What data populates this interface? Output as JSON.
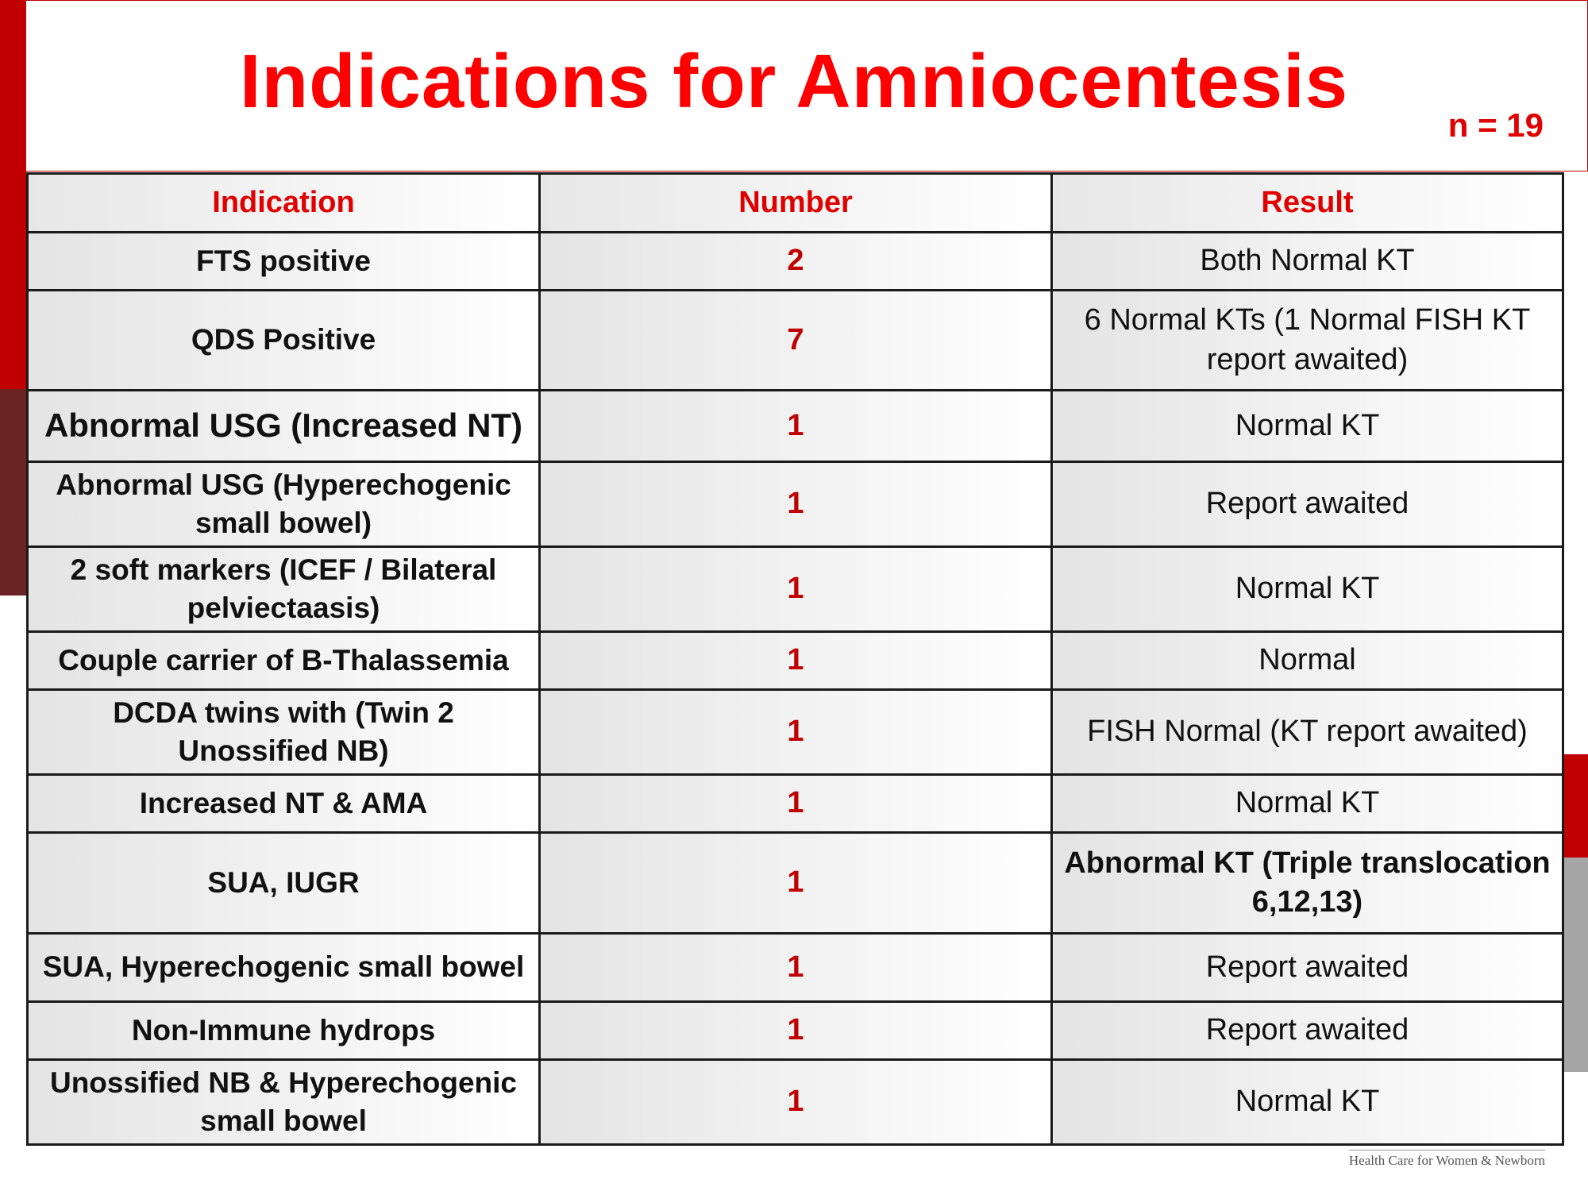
{
  "title": "Indications for Amniocentesis",
  "n_label": "n = 19",
  "columns": {
    "indication": "Indication",
    "number": "Number",
    "result": "Result"
  },
  "rows": [
    {
      "indication": "FTS positive",
      "number": "2",
      "result": "Both Normal KT"
    },
    {
      "indication": "QDS Positive",
      "number": "7",
      "result": "6 Normal KTs (1 Normal FISH KT report awaited)"
    },
    {
      "indication": "Abnormal USG (Increased NT)",
      "number": "1",
      "result": "Normal KT"
    },
    {
      "indication": "Abnormal USG (Hyperechogenic small bowel)",
      "number": "1",
      "result": "Report awaited"
    },
    {
      "indication": "2 soft markers (ICEF / Bilateral pelviectaasis)",
      "number": "1",
      "result": "Normal KT"
    },
    {
      "indication": "Couple carrier of B-Thalassemia",
      "number": "1",
      "result": "Normal"
    },
    {
      "indication": "DCDA twins with (Twin 2 Unossified NB)",
      "number": "1",
      "result": "FISH Normal (KT report awaited)"
    },
    {
      "indication": "Increased NT & AMA",
      "number": "1",
      "result": "Normal KT"
    },
    {
      "indication": "SUA, IUGR",
      "number": "1",
      "result": "Abnormal KT (Triple translocation 6,12,13)"
    },
    {
      "indication": "SUA, Hyperechogenic small bowel",
      "number": "1",
      "result": "Report awaited"
    },
    {
      "indication": "Non-Immune hydrops",
      "number": "1",
      "result": "Report awaited"
    },
    {
      "indication": "Unossified NB & Hyperechogenic small bowel",
      "number": "1",
      "result": "Normal KT"
    }
  ],
  "footer": "Health Care for Women & Newborn",
  "colors": {
    "accent": "#ff0000",
    "dark_red": "#c00000",
    "maroon": "#6b2424",
    "grey": "#a6a6a6"
  }
}
